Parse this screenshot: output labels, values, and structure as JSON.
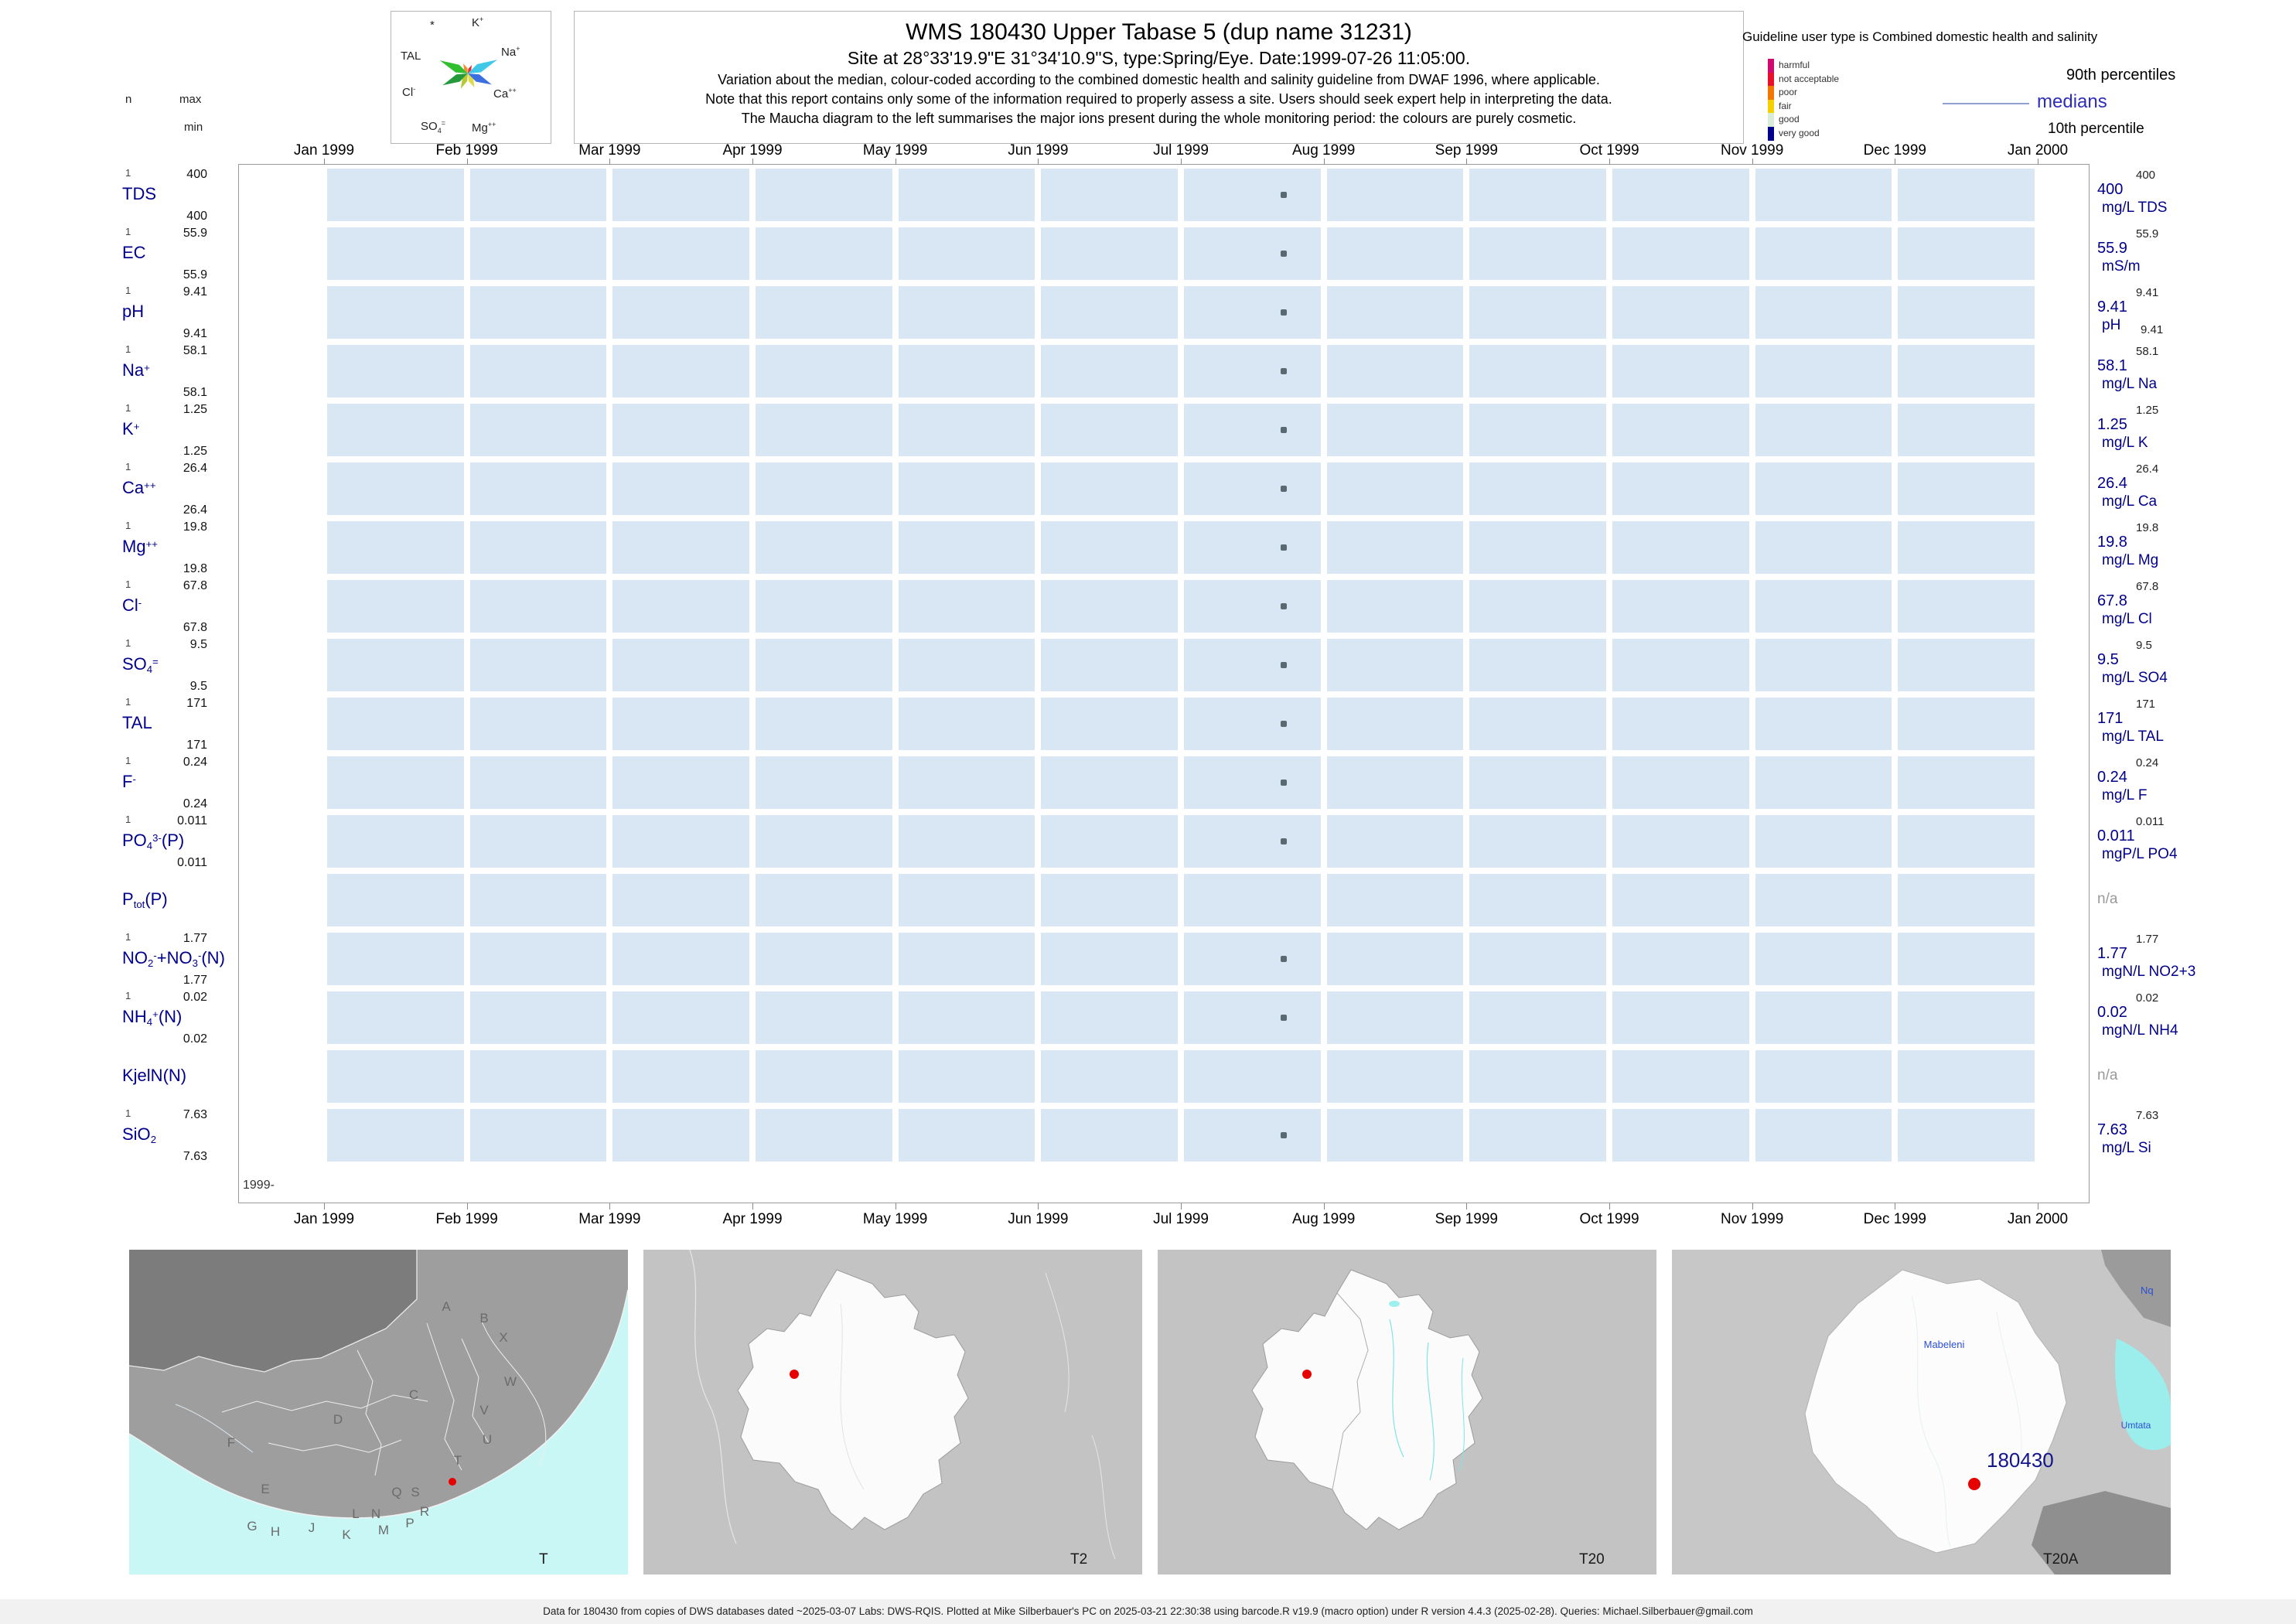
{
  "header": {
    "mini_legend": {
      "n": "n",
      "max": "max",
      "min": "min"
    },
    "maucha": {
      "star": [
        {
          "t": "*"
        }
      ],
      "k": [
        {
          "t": "K"
        },
        {
          "t": "+",
          "s": "sup"
        }
      ],
      "na": [
        {
          "t": "Na"
        },
        {
          "t": "+",
          "s": "sup"
        }
      ],
      "tal": [
        {
          "t": "TAL"
        }
      ],
      "cl": [
        {
          "t": "Cl"
        },
        {
          "t": "-",
          "s": "sup"
        }
      ],
      "ca": [
        {
          "t": "Ca"
        },
        {
          "t": "++",
          "s": "sup"
        }
      ],
      "so4": [
        {
          "t": "SO"
        },
        {
          "t": "4",
          "s": "sub"
        },
        {
          "t": "=",
          "s": "sup"
        }
      ],
      "mg": [
        {
          "t": "Mg"
        },
        {
          "t": "++",
          "s": "sup"
        }
      ]
    },
    "title": "WMS 180430  Upper Tabase 5 (dup name 31231)",
    "subtitle": "Site at 28°33'19.9\"E 31°34'10.9\"S, type:Spring/Eye. Date:1999-07-26 11:05:00.",
    "note1": "Variation about the median,  colour-coded according to the combined domestic health and salinity guideline from DWAF 1996, where applicable.",
    "note2": "Note that this report contains only some of the information required to properly assess a site. Users should seek expert help in interpreting the data.",
    "note3": "The Maucha diagram to the left summarises the major ions present during the whole monitoring period: the colours are purely cosmetic.",
    "guideline": {
      "title": "Guideline user type is Combined domestic health and salinity",
      "classes": [
        {
          "label": "harmful",
          "color": "#cf0a70"
        },
        {
          "label": "not acceptable",
          "color": "#e8112d"
        },
        {
          "label": "poor",
          "color": "#f07800"
        },
        {
          "label": "fair",
          "color": "#f5d000"
        },
        {
          "label": "good",
          "color": "#d8ecd8"
        },
        {
          "label": "very good",
          "color": "#00008b"
        }
      ],
      "p90_label": "90th percentiles",
      "median_label": "medians",
      "p10_label": "10th percentile"
    }
  },
  "chart": {
    "months": [
      "Jan 1999",
      "Feb 1999",
      "Mar 1999",
      "Apr 1999",
      "May 1999",
      "Jun 1999",
      "Jul 1999",
      "Aug 1999",
      "Sep 1999",
      "Oct 1999",
      "Nov 1999",
      "Dec 1999",
      "Jan 2000"
    ],
    "year_label": "1999-",
    "na_label": "n/a",
    "rows": [
      {
        "n": "1",
        "max": "400",
        "min": "400",
        "p90": "400",
        "median": "400",
        "unit": "mg/L TDS",
        "name_parts": [
          {
            "t": "TDS"
          }
        ]
      },
      {
        "n": "1",
        "max": "55.9",
        "min": "55.9",
        "p90": "55.9",
        "median": "55.9",
        "unit": "mS/m",
        "name_parts": [
          {
            "t": "EC"
          }
        ]
      },
      {
        "n": "1",
        "max": "9.41",
        "min": "9.41",
        "p90": "9.41",
        "median": "9.41",
        "p10": "9.41",
        "unit": "pH",
        "name_parts": [
          {
            "t": "pH"
          }
        ]
      },
      {
        "n": "1",
        "max": "58.1",
        "min": "58.1",
        "p90": "58.1",
        "median": "58.1",
        "unit": "mg/L Na",
        "name_parts": [
          {
            "t": "Na"
          },
          {
            "t": "+",
            "s": "sup"
          }
        ]
      },
      {
        "n": "1",
        "max": "1.25",
        "min": "1.25",
        "p90": "1.25",
        "median": "1.25",
        "unit": "mg/L K",
        "name_parts": [
          {
            "t": "K"
          },
          {
            "t": "+",
            "s": "sup"
          }
        ]
      },
      {
        "n": "1",
        "max": "26.4",
        "min": "26.4",
        "p90": "26.4",
        "median": "26.4",
        "unit": "mg/L Ca",
        "name_parts": [
          {
            "t": "Ca"
          },
          {
            "t": "++",
            "s": "sup"
          }
        ]
      },
      {
        "n": "1",
        "max": "19.8",
        "min": "19.8",
        "p90": "19.8",
        "median": "19.8",
        "unit": "mg/L Mg",
        "name_parts": [
          {
            "t": "Mg"
          },
          {
            "t": "++",
            "s": "sup"
          }
        ]
      },
      {
        "n": "1",
        "max": "67.8",
        "min": "67.8",
        "p90": "67.8",
        "median": "67.8",
        "unit": "mg/L Cl",
        "name_parts": [
          {
            "t": "Cl"
          },
          {
            "t": "-",
            "s": "sup"
          }
        ]
      },
      {
        "n": "1",
        "max": "9.5",
        "min": "9.5",
        "p90": "9.5",
        "median": "9.5",
        "unit": "mg/L SO4",
        "name_parts": [
          {
            "t": "SO"
          },
          {
            "t": "4",
            "s": "sub"
          },
          {
            "t": "=",
            "s": "sup"
          }
        ]
      },
      {
        "n": "1",
        "max": "171",
        "min": "171",
        "p90": "171",
        "median": "171",
        "unit": "mg/L TAL",
        "name_parts": [
          {
            "t": "TAL"
          }
        ]
      },
      {
        "n": "1",
        "max": "0.24",
        "min": "0.24",
        "p90": "0.24",
        "median": "0.24",
        "unit": "mg/L F",
        "name_parts": [
          {
            "t": "F"
          },
          {
            "t": "-",
            "s": "sup"
          }
        ]
      },
      {
        "n": "1",
        "max": "0.011",
        "min": "0.011",
        "p90": "0.011",
        "median": "0.011",
        "unit": "mgP/L PO4",
        "name_parts": [
          {
            "t": "PO"
          },
          {
            "t": "4",
            "s": "sub"
          },
          {
            "t": "3-",
            "s": "sup"
          },
          {
            "t": "(P)"
          }
        ]
      },
      {
        "na": true,
        "name_parts": [
          {
            "t": "P"
          },
          {
            "t": "tot",
            "s": "sub"
          },
          {
            "t": "(P)"
          }
        ]
      },
      {
        "n": "1",
        "max": "1.77",
        "min": "1.77",
        "p90": "1.77",
        "median": "1.77",
        "unit": "mgN/L NO2+3",
        "name_parts": [
          {
            "t": "NO"
          },
          {
            "t": "2",
            "s": "sub"
          },
          {
            "t": "-",
            "s": "sup"
          },
          {
            "t": "+NO"
          },
          {
            "t": "3",
            "s": "sub"
          },
          {
            "t": "-",
            "s": "sup"
          },
          {
            "t": "(N)"
          }
        ]
      },
      {
        "n": "1",
        "max": "0.02",
        "min": "0.02",
        "p90": "0.02",
        "median": "0.02",
        "unit": "mgN/L NH4",
        "name_parts": [
          {
            "t": "NH"
          },
          {
            "t": "4",
            "s": "sub"
          },
          {
            "t": "+",
            "s": "sup"
          },
          {
            "t": "(N)"
          }
        ]
      },
      {
        "na": true,
        "name_parts": [
          {
            "t": "KjelN(N)"
          }
        ]
      },
      {
        "n": "1",
        "max": "7.63",
        "min": "7.63",
        "p90": "7.63",
        "median": "7.63",
        "unit": "mg/L Si",
        "name_parts": [
          {
            "t": "SiO"
          },
          {
            "t": "2",
            "s": "sub"
          }
        ]
      }
    ]
  },
  "chart_data": {
    "type": "table",
    "title": "WMS 180430 Upper Tabase 5 (dup name 31231)",
    "site_coordinates": "28°33'19.9\"E 31°34'10.9\"S",
    "site_type": "Spring/Eye",
    "sample_datetime": "1999-07-26 11:05:00",
    "guideline": "Combined domestic health and salinity",
    "x_axis_months": [
      "Jan 1999",
      "Feb 1999",
      "Mar 1999",
      "Apr 1999",
      "May 1999",
      "Jun 1999",
      "Jul 1999",
      "Aug 1999",
      "Sep 1999",
      "Oct 1999",
      "Nov 1999",
      "Dec 1999",
      "Jan 2000"
    ],
    "parameters": [
      {
        "param": "TDS",
        "unit": "mg/L TDS",
        "n": 1,
        "min": 400,
        "max": 400,
        "median": 400,
        "p90": 400
      },
      {
        "param": "EC",
        "unit": "mS/m",
        "n": 1,
        "min": 55.9,
        "max": 55.9,
        "median": 55.9,
        "p90": 55.9
      },
      {
        "param": "pH",
        "unit": "pH",
        "n": 1,
        "min": 9.41,
        "max": 9.41,
        "median": 9.41,
        "p90": 9.41,
        "p10": 9.41
      },
      {
        "param": "Na",
        "unit": "mg/L Na",
        "n": 1,
        "min": 58.1,
        "max": 58.1,
        "median": 58.1,
        "p90": 58.1
      },
      {
        "param": "K",
        "unit": "mg/L K",
        "n": 1,
        "min": 1.25,
        "max": 1.25,
        "median": 1.25,
        "p90": 1.25
      },
      {
        "param": "Ca",
        "unit": "mg/L Ca",
        "n": 1,
        "min": 26.4,
        "max": 26.4,
        "median": 26.4,
        "p90": 26.4
      },
      {
        "param": "Mg",
        "unit": "mg/L Mg",
        "n": 1,
        "min": 19.8,
        "max": 19.8,
        "median": 19.8,
        "p90": 19.8
      },
      {
        "param": "Cl",
        "unit": "mg/L Cl",
        "n": 1,
        "min": 67.8,
        "max": 67.8,
        "median": 67.8,
        "p90": 67.8
      },
      {
        "param": "SO4",
        "unit": "mg/L SO4",
        "n": 1,
        "min": 9.5,
        "max": 9.5,
        "median": 9.5,
        "p90": 9.5
      },
      {
        "param": "TAL",
        "unit": "mg/L TAL",
        "n": 1,
        "min": 171,
        "max": 171,
        "median": 171,
        "p90": 171
      },
      {
        "param": "F",
        "unit": "mg/L F",
        "n": 1,
        "min": 0.24,
        "max": 0.24,
        "median": 0.24,
        "p90": 0.24
      },
      {
        "param": "PO4-P",
        "unit": "mgP/L PO4",
        "n": 1,
        "min": 0.011,
        "max": 0.011,
        "median": 0.011,
        "p90": 0.011
      },
      {
        "param": "Ptot-P",
        "n": 0,
        "value": "n/a"
      },
      {
        "param": "NO2+NO3-N",
        "unit": "mgN/L NO2+3",
        "n": 1,
        "min": 1.77,
        "max": 1.77,
        "median": 1.77,
        "p90": 1.77
      },
      {
        "param": "NH4-N",
        "unit": "mgN/L NH4",
        "n": 1,
        "min": 0.02,
        "max": 0.02,
        "median": 0.02,
        "p90": 0.02
      },
      {
        "param": "KjelN-N",
        "n": 0,
        "value": "n/a"
      },
      {
        "param": "SiO2",
        "unit": "mg/L Si",
        "n": 1,
        "min": 7.63,
        "max": 7.63,
        "median": 7.63,
        "p90": 7.63
      }
    ]
  },
  "maps": [
    {
      "panel_label": "T",
      "region_letters": [
        "A",
        "B",
        "X",
        "W",
        "C",
        "V",
        "U",
        "T",
        "D",
        "F",
        "E",
        "Q",
        "S",
        "R",
        "L",
        "N",
        "G",
        "H",
        "J",
        "K",
        "M",
        "P"
      ]
    },
    {
      "panel_label": "T2"
    },
    {
      "panel_label": "T20"
    },
    {
      "panel_label": "T20A",
      "place_labels": [
        "Mabeleni",
        "Umtata",
        "Nq"
      ],
      "station_label": "180430"
    }
  ],
  "footer": "Data for 180430 from copies of DWS databases dated ~2025-03-07 Labs: DWS-RQIS. Plotted at Mike Silberbauer's PC on 2025-03-21 22:30:38 using barcode.R v19.9 (macro option) under R version 4.4.3 (2025-02-28). Queries: Michael.Silberbauer@gmail.com"
}
